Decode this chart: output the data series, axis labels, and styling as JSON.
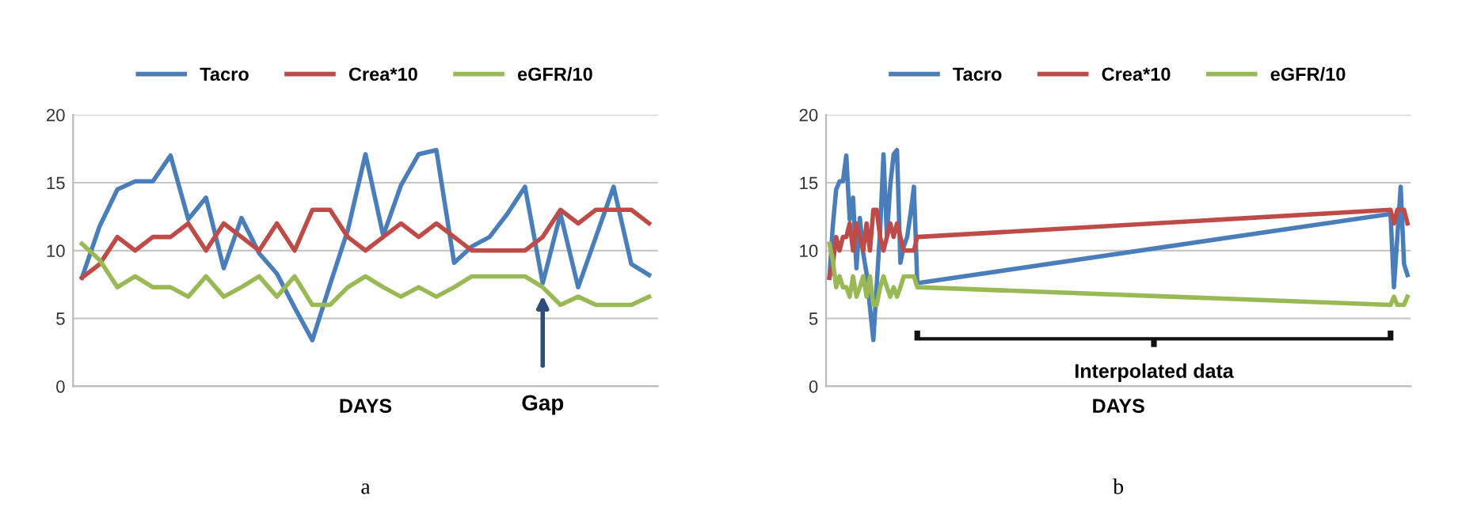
{
  "chart_data": [
    {
      "type": "line",
      "xlabel": "DAYS",
      "categories": [
        null,
        null,
        null,
        null,
        null,
        null,
        null,
        null,
        null,
        null,
        null,
        null,
        null,
        null,
        null,
        null,
        null,
        null,
        null,
        null,
        null,
        null,
        null,
        null,
        null,
        null,
        null,
        null,
        null,
        null,
        null,
        null,
        null
      ],
      "series": [
        {
          "name": "Tacro",
          "color": "#4a7ebb",
          "values": [
            8,
            11.8,
            14.5,
            15.1,
            15.1,
            17,
            12.3,
            13.9,
            8.7,
            12.4,
            9.8,
            8.3,
            5.8,
            3.4,
            7.5,
            11.5,
            17.1,
            11.1,
            14.8,
            17.1,
            17.4,
            9.1,
            10.3,
            11,
            12.7,
            14.7,
            7.6,
            12.7,
            7.3,
            11,
            14.7,
            9,
            8.2
          ]
        },
        {
          "name": "Crea*10",
          "color": "#be4b48",
          "values": [
            8,
            9,
            11,
            10,
            11,
            11,
            12,
            10,
            12,
            11,
            10,
            12,
            10,
            13,
            13,
            11,
            10,
            11,
            12,
            11,
            12,
            11,
            10,
            10,
            10,
            10,
            11,
            13,
            12,
            13,
            13,
            13,
            12
          ]
        },
        {
          "name": "eGFR/10",
          "color": "#98b954",
          "values": [
            10.5,
            9.3,
            7.3,
            8.1,
            7.3,
            7.3,
            6.6,
            8.1,
            6.6,
            7.3,
            8.1,
            6.6,
            8.1,
            6,
            6,
            7.3,
            8.1,
            7.3,
            6.6,
            7.3,
            6.6,
            7.3,
            8.1,
            8.1,
            8.1,
            8.1,
            7.3,
            6,
            6.6,
            6,
            6,
            6,
            6.6
          ]
        }
      ],
      "ylim": [
        0,
        20
      ],
      "yticks": [
        0,
        5,
        10,
        15,
        20
      ],
      "grid": "y",
      "legend": "top",
      "marker": "none",
      "line_style": "solid",
      "annotations": [
        "Gap",
        "a"
      ]
    },
    {
      "type": "line",
      "xlabel": "DAYS",
      "categories": [
        null,
        null,
        null,
        null,
        null,
        null,
        null,
        null,
        null,
        null,
        null,
        null,
        null,
        null,
        null,
        null,
        null,
        null,
        null,
        null,
        null,
        null,
        null,
        null,
        null,
        null,
        null,
        null,
        null,
        null,
        null,
        null,
        null,
        null,
        null,
        null,
        null,
        null,
        null,
        null,
        null,
        null,
        null,
        null,
        null,
        null,
        null,
        null,
        null,
        null,
        null,
        null,
        null,
        null,
        null,
        null,
        null,
        null,
        null,
        null,
        null,
        null,
        null,
        null,
        null,
        null,
        null,
        null,
        null,
        null,
        null,
        null,
        null,
        null,
        null,
        null,
        null,
        null,
        null,
        null,
        null,
        null,
        null,
        null,
        null,
        null,
        null,
        null,
        null,
        null,
        null,
        null,
        null,
        null,
        null,
        null,
        null,
        null,
        null,
        null,
        null,
        null,
        null,
        null,
        null,
        null,
        null,
        null,
        null,
        null,
        null,
        null,
        null,
        null,
        null,
        null,
        null,
        null,
        null,
        null,
        null,
        null,
        null,
        null,
        null,
        null,
        null,
        null,
        null,
        null,
        null,
        null,
        null,
        null,
        null,
        null,
        null,
        null,
        null,
        null,
        null,
        null,
        null,
        null,
        null,
        null,
        null,
        null,
        null,
        null,
        null,
        null,
        null,
        null,
        null,
        null,
        null,
        null,
        null,
        null,
        null,
        null,
        null,
        null,
        null,
        null,
        null,
        null,
        null,
        null,
        null,
        null
      ],
      "series": [
        {
          "name": "Tacro",
          "color": "#4a7ebb",
          "values": [
            8,
            11.8,
            14.5,
            15.1,
            15.1,
            17,
            12.3,
            13.9,
            8.7,
            12.4,
            9.8,
            8.3,
            5.8,
            3.4,
            7.5,
            11.5,
            17.1,
            11.1,
            14.8,
            17.1,
            17.4,
            9.1,
            10.3,
            11,
            12.7,
            14.7,
            7.6,
            null,
            null,
            null,
            null,
            null,
            null,
            null,
            null,
            null,
            null,
            null,
            null,
            null,
            null,
            null,
            null,
            null,
            null,
            null,
            null,
            null,
            null,
            null,
            null,
            null,
            null,
            null,
            null,
            null,
            null,
            null,
            null,
            null,
            null,
            null,
            null,
            null,
            null,
            null,
            null,
            null,
            null,
            null,
            null,
            null,
            null,
            null,
            null,
            null,
            null,
            null,
            null,
            null,
            null,
            null,
            null,
            null,
            null,
            null,
            null,
            null,
            null,
            null,
            null,
            null,
            null,
            null,
            null,
            null,
            null,
            null,
            null,
            null,
            null,
            null,
            null,
            null,
            null,
            null,
            null,
            null,
            null,
            null,
            null,
            null,
            null,
            null,
            null,
            null,
            null,
            null,
            null,
            null,
            null,
            null,
            null,
            null,
            null,
            null,
            null,
            null,
            null,
            null,
            null,
            null,
            null,
            null,
            null,
            null,
            null,
            null,
            null,
            null,
            null,
            null,
            null,
            null,
            null,
            null,
            null,
            null,
            null,
            null,
            null,
            null,
            null,
            null,
            null,
            null,
            null,
            null,
            null,
            null,
            null,
            null,
            null,
            null,
            null,
            null,
            12.7,
            7.3,
            11,
            14.7,
            9,
            8.2
          ]
        },
        {
          "name": "Crea*10",
          "color": "#be4b48",
          "values": [
            8,
            9,
            11,
            10,
            11,
            11,
            12,
            10,
            12,
            11,
            10,
            12,
            10,
            13,
            13,
            11,
            10,
            11,
            12,
            11,
            12,
            11,
            10,
            10,
            10,
            10,
            11,
            null,
            null,
            null,
            null,
            null,
            null,
            null,
            null,
            null,
            null,
            null,
            null,
            null,
            null,
            null,
            null,
            null,
            null,
            null,
            null,
            null,
            null,
            null,
            null,
            null,
            null,
            null,
            null,
            null,
            null,
            null,
            null,
            null,
            null,
            null,
            null,
            null,
            null,
            null,
            null,
            null,
            null,
            null,
            null,
            null,
            null,
            null,
            null,
            null,
            null,
            null,
            null,
            null,
            null,
            null,
            null,
            null,
            null,
            null,
            null,
            null,
            null,
            null,
            null,
            null,
            null,
            null,
            null,
            null,
            null,
            null,
            null,
            null,
            null,
            null,
            null,
            null,
            null,
            null,
            null,
            null,
            null,
            null,
            null,
            null,
            null,
            null,
            null,
            null,
            null,
            null,
            null,
            null,
            null,
            null,
            null,
            null,
            null,
            null,
            null,
            null,
            null,
            null,
            null,
            null,
            null,
            null,
            null,
            null,
            null,
            null,
            null,
            null,
            null,
            null,
            null,
            null,
            null,
            null,
            null,
            null,
            null,
            null,
            null,
            null,
            null,
            null,
            null,
            null,
            null,
            null,
            null,
            null,
            null,
            null,
            null,
            null,
            null,
            null,
            13,
            12,
            13,
            13,
            13,
            12
          ]
        },
        {
          "name": "eGFR/10",
          "color": "#98b954",
          "values": [
            10.5,
            9.3,
            7.3,
            8.1,
            7.3,
            7.3,
            6.6,
            8.1,
            6.6,
            7.3,
            8.1,
            6.6,
            8.1,
            6,
            6,
            7.3,
            8.1,
            7.3,
            6.6,
            7.3,
            6.6,
            7.3,
            8.1,
            8.1,
            8.1,
            8.1,
            7.3,
            null,
            null,
            null,
            null,
            null,
            null,
            null,
            null,
            null,
            null,
            null,
            null,
            null,
            null,
            null,
            null,
            null,
            null,
            null,
            null,
            null,
            null,
            null,
            null,
            null,
            null,
            null,
            null,
            null,
            null,
            null,
            null,
            null,
            null,
            null,
            null,
            null,
            null,
            null,
            null,
            null,
            null,
            null,
            null,
            null,
            null,
            null,
            null,
            null,
            null,
            null,
            null,
            null,
            null,
            null,
            null,
            null,
            null,
            null,
            null,
            null,
            null,
            null,
            null,
            null,
            null,
            null,
            null,
            null,
            null,
            null,
            null,
            null,
            null,
            null,
            null,
            null,
            null,
            null,
            null,
            null,
            null,
            null,
            null,
            null,
            null,
            null,
            null,
            null,
            null,
            null,
            null,
            null,
            null,
            null,
            null,
            null,
            null,
            null,
            null,
            null,
            null,
            null,
            null,
            null,
            null,
            null,
            null,
            null,
            null,
            null,
            null,
            null,
            null,
            null,
            null,
            null,
            null,
            null,
            null,
            null,
            null,
            null,
            null,
            null,
            null,
            null,
            null,
            null,
            null,
            null,
            null,
            null,
            null,
            null,
            null,
            null,
            null,
            null,
            6,
            6.6,
            6,
            6,
            6,
            6.6
          ]
        }
      ],
      "ylim": [
        0,
        20
      ],
      "yticks": [
        0,
        5,
        10,
        15,
        20
      ],
      "grid": "y",
      "legend": "top",
      "marker": "none",
      "line_style": "solid",
      "annotations": [
        "Interpolated data",
        "b"
      ]
    }
  ]
}
